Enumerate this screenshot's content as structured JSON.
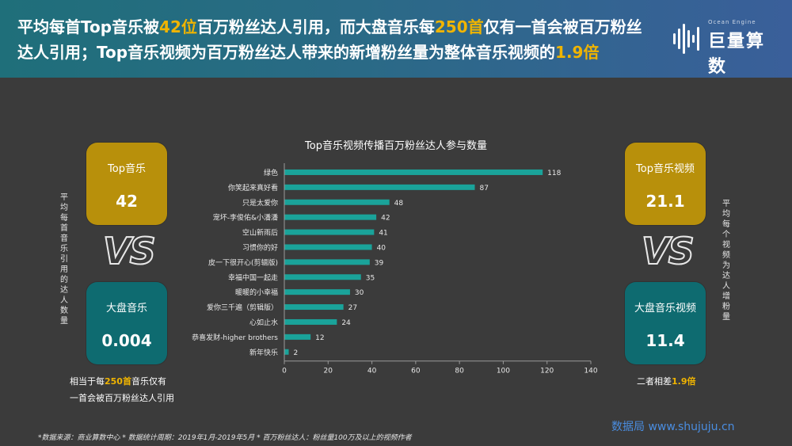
{
  "headline": {
    "p1": "平均每首Top音乐被",
    "h1": "42位",
    "p2": "百万粉丝达人引用，而大盘音乐每",
    "h2": "250首",
    "p3": "仅有一首会被百万粉丝达人引用；Top音乐视频为百万粉丝达人带来的新增粉丝量为整体音乐视频的",
    "h3": "1.9倍"
  },
  "logo": {
    "text": "巨量算数",
    "sub": "Ocean Engine"
  },
  "left_panel": {
    "top_label": "Top音乐",
    "top_value": "42",
    "bottom_label": "大盘音乐",
    "bottom_value": "0.004",
    "vs": "VS",
    "vertical_caption": "平均每首音乐引用的达人数量",
    "note_p1": "相当于每",
    "note_h": "250首",
    "note_p2": "音乐仅有",
    "note_p3": "一首会被百万粉丝达人引用"
  },
  "right_panel": {
    "top_label": "Top音乐视频",
    "top_value": "21.1",
    "bottom_label": "大盘音乐视频",
    "bottom_value": "11.4",
    "vs": "VS",
    "vertical_caption": "平均每个视频为达人增粉量",
    "note_p1": "二者相差",
    "note_h": "1.9倍"
  },
  "footer": "*数据来源：商业算数中心 * 数据统计周期：2019年1月-2019年5月 * 百万粉丝达人：粉丝量100万及以上的视频作者",
  "watermark": "数据局 www.shujuju.cn",
  "colors": {
    "bar": "#1aa39a",
    "gold": "#b8900b",
    "teal": "#0e6b70",
    "highlight": "#f0b400"
  },
  "chart_data": {
    "type": "bar",
    "orientation": "horizontal",
    "title": "Top音乐视频传播百万粉丝达人参与数量",
    "categories": [
      "绿色",
      "你笑起来真好看",
      "只是太爱你",
      "宠坏-李俊佑&小潘潘",
      "空山新雨后",
      "习惯你的好",
      "皮一下很开心(剪辑版)",
      "幸福中国一起走",
      "暖暖的小幸福",
      "爱你三千遍（剪辑版）",
      "心如止水",
      "恭喜发财-higher brothers",
      "新年快乐"
    ],
    "values": [
      118,
      87,
      48,
      42,
      41,
      40,
      39,
      35,
      30,
      27,
      24,
      12,
      2
    ],
    "xlim": [
      0,
      140
    ],
    "xticks": [
      0,
      20,
      40,
      60,
      80,
      100,
      120,
      140
    ],
    "grid": false
  }
}
